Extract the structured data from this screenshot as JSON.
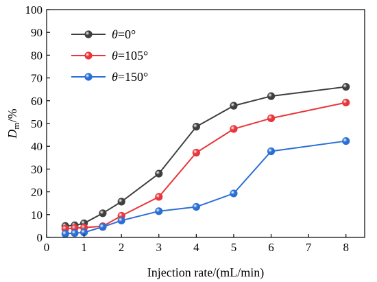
{
  "chart_data": {
    "type": "line",
    "xlabel": "Injection rate/(mL/min)",
    "ylabel": {
      "main": "D",
      "sub": "m",
      "suffix": "/%"
    },
    "xlim": [
      0,
      8.5
    ],
    "ylim": [
      0,
      100
    ],
    "xticks": [
      0,
      1,
      2,
      3,
      4,
      5,
      6,
      7,
      8
    ],
    "yticks": [
      0,
      10,
      20,
      30,
      40,
      50,
      60,
      70,
      80,
      90,
      100
    ],
    "grid": false,
    "legend_position": "top-left",
    "x": [
      0.5,
      0.75,
      1,
      1.5,
      2,
      3,
      4,
      5,
      6,
      8
    ],
    "series": [
      {
        "name": "θ=0°",
        "name_parts": {
          "symbol": "θ",
          "rest": "=0°"
        },
        "color": "#3f3f3f",
        "values": [
          5.0,
          5.3,
          6.2,
          10.6,
          15.7,
          28.0,
          48.6,
          57.8,
          62.0,
          66.1
        ]
      },
      {
        "name": "θ=105°",
        "name_parts": {
          "symbol": "θ",
          "rest": "=105°"
        },
        "color": "#e8363a",
        "values": [
          3.8,
          4.1,
          4.3,
          4.9,
          9.5,
          17.8,
          37.2,
          47.6,
          52.3,
          59.2
        ]
      },
      {
        "name": "θ=150°",
        "name_parts": {
          "symbol": "θ",
          "rest": "=150°"
        },
        "color": "#2a6fd6",
        "values": [
          1.6,
          1.9,
          2.2,
          4.6,
          7.4,
          11.5,
          13.4,
          19.3,
          37.8,
          42.3
        ]
      }
    ]
  }
}
